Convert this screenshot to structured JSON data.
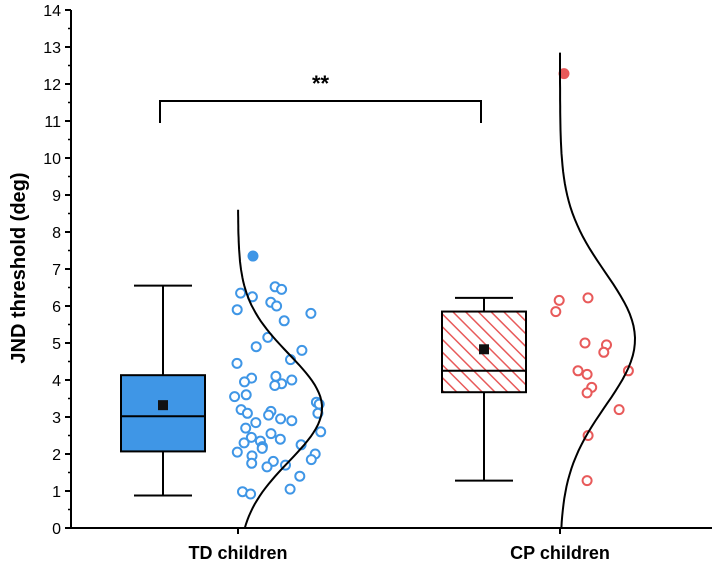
{
  "chart_data": {
    "type": "box",
    "ylabel": "JND threshold (deg)",
    "ylim": [
      0,
      14
    ],
    "yticks": [
      0,
      1,
      2,
      3,
      4,
      5,
      6,
      7,
      8,
      9,
      10,
      11,
      12,
      13,
      14
    ],
    "categories": [
      "TD children",
      "CP children"
    ],
    "annotations": [
      {
        "text": "**",
        "between": [
          "TD children",
          "CP children"
        ]
      }
    ],
    "series": [
      {
        "category": "TD children",
        "color": "#3f96e6",
        "box": {
          "whisker_low": 0.88,
          "q1": 2.07,
          "median": 3.02,
          "q3": 4.13,
          "whisker_high": 6.55,
          "mean": 3.32
        },
        "fill": "solid",
        "outliers": [
          7.35
        ],
        "points": [
          6.52,
          6.45,
          6.35,
          6.25,
          6.1,
          6.0,
          5.9,
          5.8,
          5.6,
          5.15,
          4.9,
          4.8,
          4.55,
          4.45,
          4.1,
          4.05,
          4.0,
          3.95,
          3.9,
          3.85,
          3.6,
          3.55,
          3.4,
          3.35,
          3.2,
          3.15,
          3.1,
          3.1,
          3.05,
          2.95,
          2.9,
          2.85,
          2.7,
          2.6,
          2.55,
          2.45,
          2.4,
          2.35,
          2.3,
          2.25,
          2.2,
          2.15,
          2.05,
          2.0,
          1.95,
          1.85,
          1.8,
          1.75,
          1.7,
          1.65,
          1.4,
          1.05,
          0.98,
          0.92
        ],
        "density_peak": 3.25
      },
      {
        "category": "CP children",
        "color": "#e85a5a",
        "box": {
          "whisker_low": 1.28,
          "q1": 3.67,
          "median": 4.25,
          "q3": 5.85,
          "whisker_high": 6.22,
          "mean": 4.83
        },
        "fill": "hatched",
        "outliers": [
          12.28
        ],
        "points": [
          6.22,
          6.15,
          5.85,
          5.0,
          4.95,
          4.75,
          4.25,
          4.25,
          4.15,
          3.8,
          3.65,
          3.2,
          2.5,
          1.28
        ],
        "density_peak": 5.1
      }
    ]
  }
}
